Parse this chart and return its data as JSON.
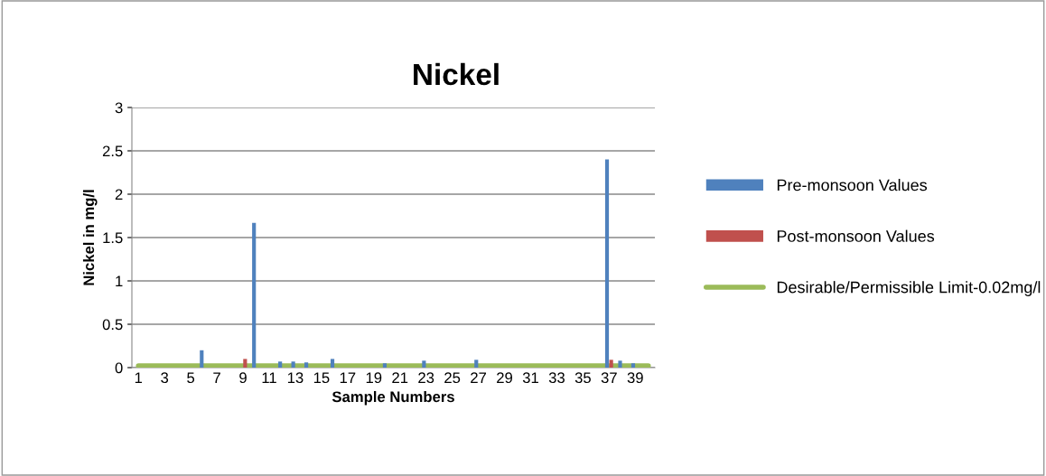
{
  "chart_data": {
    "type": "bar",
    "title": "Nickel",
    "xlabel": "Sample Numbers",
    "ylabel": "Nickel in mg/l",
    "categories": [
      "1",
      null,
      "3",
      null,
      "5",
      null,
      "7",
      null,
      "9",
      null,
      "11",
      null,
      "13",
      null,
      "15",
      null,
      "17",
      null,
      "19",
      null,
      "21",
      null,
      "23",
      null,
      "25",
      null,
      "27",
      null,
      "29",
      null,
      "31",
      null,
      "33",
      null,
      "35",
      null,
      "37",
      null,
      "39",
      null
    ],
    "series": [
      {
        "name": "Pre-monsoon Values",
        "color": "#4f81bd",
        "values": [
          null,
          null,
          null,
          null,
          null,
          0.2,
          null,
          null,
          null,
          1.67,
          null,
          0.07,
          0.07,
          0.06,
          null,
          0.1,
          null,
          null,
          null,
          0.05,
          null,
          null,
          0.08,
          null,
          null,
          null,
          0.09,
          null,
          null,
          null,
          null,
          null,
          null,
          null,
          null,
          null,
          2.4,
          0.08,
          0.05,
          null
        ]
      },
      {
        "name": "Post-monsoon Values",
        "color": "#c0504d",
        "values": [
          null,
          null,
          null,
          null,
          null,
          null,
          null,
          null,
          0.1,
          null,
          null,
          null,
          null,
          null,
          null,
          null,
          null,
          null,
          null,
          null,
          null,
          null,
          null,
          null,
          null,
          null,
          null,
          null,
          null,
          null,
          null,
          null,
          null,
          null,
          null,
          null,
          0.09,
          null,
          null,
          null
        ]
      },
      {
        "name": "Desirable/Permissible Limit-0.02mg/l",
        "type": "line",
        "color": "#9bbb59",
        "values": [
          0.02,
          0.02,
          0.02,
          0.02,
          0.02,
          0.02,
          0.02,
          0.02,
          0.02,
          0.02,
          0.02,
          0.02,
          0.02,
          0.02,
          0.02,
          0.02,
          0.02,
          0.02,
          0.02,
          0.02,
          0.02,
          0.02,
          0.02,
          0.02,
          0.02,
          0.02,
          0.02,
          0.02,
          0.02,
          0.02,
          0.02,
          0.02,
          0.02,
          0.02,
          0.02,
          0.02,
          0.02,
          0.02,
          0.02,
          0.02
        ]
      }
    ],
    "ylim": [
      0,
      3
    ],
    "yticks": [
      0,
      0.5,
      1,
      1.5,
      2,
      2.5,
      3
    ],
    "grid": "y",
    "legend": "right"
  }
}
